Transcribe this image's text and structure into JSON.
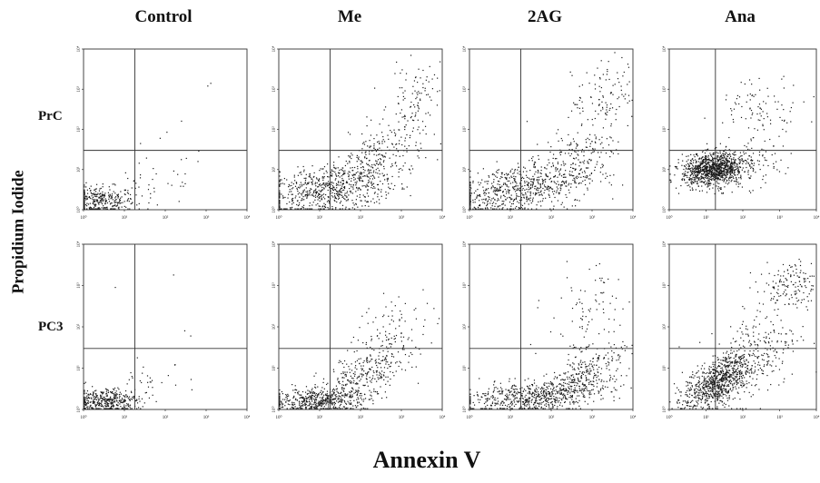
{
  "figure": {
    "x_title": "Annexin V",
    "y_title": "Propidium Iodide",
    "columns": [
      "Control",
      "Me",
      "2AG",
      "Ana"
    ],
    "rows": [
      "PrC",
      "PC3"
    ]
  },
  "chart_data": {
    "type": "scatter",
    "xlabel": "Annexin V",
    "ylabel": "Propidium Iodide",
    "x_scale": "log",
    "y_scale": "log",
    "xlim": [
      1,
      10000
    ],
    "ylim": [
      1,
      10000
    ],
    "x_ticks": [
      "10⁰",
      "10¹",
      "10²",
      "10³",
      "10⁴"
    ],
    "y_ticks": [
      "10⁰",
      "10¹",
      "10²",
      "10³",
      "10⁴"
    ],
    "point_color": "#1a1a1a",
    "panels": [
      {
        "row": "PrC",
        "col": "Control",
        "gate_x": 18,
        "gate_y": 30,
        "clusters": [
          {
            "n": 360,
            "x_log": [
              0.35,
              0.45
            ],
            "y_log": [
              0.22,
              0.18
            ],
            "rho": 0
          },
          {
            "n": 40,
            "x_log": [
              1.7,
              0.7
            ],
            "y_log": [
              0.6,
              0.4
            ],
            "rho": 0.5
          }
        ],
        "points": [
          [
            1100,
            1200
          ],
          [
            1300,
            1400
          ],
          [
            110,
            85
          ],
          [
            250,
            160
          ],
          [
            75,
            60
          ]
        ]
      },
      {
        "row": "PrC",
        "col": "Me",
        "gate_x": 18,
        "gate_y": 30,
        "clusters": [
          {
            "n": 680,
            "x_log": [
              1.2,
              0.85
            ],
            "y_log": [
              0.5,
              0.35
            ],
            "rho": 0.45
          },
          {
            "n": 260,
            "x_log": [
              2.4,
              0.6
            ],
            "y_log": [
              1.25,
              0.55
            ],
            "rho": 0.6
          },
          {
            "n": 90,
            "x_log": [
              3.4,
              0.35
            ],
            "y_log": [
              2.9,
              0.4
            ],
            "rho": 0.3
          }
        ],
        "points": []
      },
      {
        "row": "PrC",
        "col": "2AG",
        "gate_x": 18,
        "gate_y": 30,
        "clusters": [
          {
            "n": 650,
            "x_log": [
              1.1,
              0.85
            ],
            "y_log": [
              0.5,
              0.35
            ],
            "rho": 0.45
          },
          {
            "n": 220,
            "x_log": [
              2.5,
              0.55
            ],
            "y_log": [
              1.15,
              0.5
            ],
            "rho": 0.5
          },
          {
            "n": 110,
            "x_log": [
              3.3,
              0.4
            ],
            "y_log": [
              2.8,
              0.45
            ],
            "rho": 0.3
          }
        ],
        "points": []
      },
      {
        "row": "PrC",
        "col": "Ana",
        "gate_x": 18,
        "gate_y": 30,
        "clusters": [
          {
            "n": 1050,
            "x_log": [
              1.2,
              0.42
            ],
            "y_log": [
              1.0,
              0.2
            ],
            "rho": 0.15
          },
          {
            "n": 150,
            "x_log": [
              1.9,
              0.55
            ],
            "y_log": [
              1.1,
              0.3
            ],
            "rho": 0.2
          },
          {
            "n": 90,
            "x_log": [
              2.5,
              0.6
            ],
            "y_log": [
              2.6,
              0.35
            ],
            "rho": 0.1
          }
        ],
        "points": []
      },
      {
        "row": "PC3",
        "col": "Control",
        "gate_x": 18,
        "gate_y": 30,
        "clusters": [
          {
            "n": 420,
            "x_log": [
              0.55,
              0.4
            ],
            "y_log": [
              0.2,
              0.15
            ],
            "rho": 0
          },
          {
            "n": 30,
            "x_log": [
              1.6,
              0.5
            ],
            "y_log": [
              0.55,
              0.3
            ],
            "rho": 0.4
          }
        ],
        "points": [
          [
            6,
            900
          ],
          [
            160,
            1800
          ],
          [
            300,
            80
          ],
          [
            420,
            60
          ]
        ]
      },
      {
        "row": "PC3",
        "col": "Me",
        "gate_x": 18,
        "gate_y": 30,
        "clusters": [
          {
            "n": 520,
            "x_log": [
              1.0,
              0.6
            ],
            "y_log": [
              0.22,
              0.15
            ],
            "rho": 0.2
          },
          {
            "n": 300,
            "x_log": [
              2.1,
              0.55
            ],
            "y_log": [
              0.8,
              0.4
            ],
            "rho": 0.55
          },
          {
            "n": 90,
            "x_log": [
              2.8,
              0.5
            ],
            "y_log": [
              1.9,
              0.5
            ],
            "rho": 0.4
          }
        ],
        "points": []
      },
      {
        "row": "PC3",
        "col": "2AG",
        "gate_x": 18,
        "gate_y": 30,
        "clusters": [
          {
            "n": 600,
            "x_log": [
              1.5,
              0.8
            ],
            "y_log": [
              0.3,
              0.2
            ],
            "rho": 0.35
          },
          {
            "n": 320,
            "x_log": [
              2.8,
              0.5
            ],
            "y_log": [
              0.8,
              0.35
            ],
            "rho": 0.5
          },
          {
            "n": 90,
            "x_log": [
              2.9,
              0.5
            ],
            "y_log": [
              2.3,
              0.6
            ],
            "rho": 0.3
          }
        ],
        "points": []
      },
      {
        "row": "PC3",
        "col": "Ana",
        "gate_x": 18,
        "gate_y": 30,
        "clusters": [
          {
            "n": 780,
            "x_log": [
              1.3,
              0.45
            ],
            "y_log": [
              0.65,
              0.32
            ],
            "rho": 0.55
          },
          {
            "n": 280,
            "x_log": [
              2.3,
              0.6
            ],
            "y_log": [
              1.3,
              0.6
            ],
            "rho": 0.45
          },
          {
            "n": 160,
            "x_log": [
              3.3,
              0.45
            ],
            "y_log": [
              3.0,
              0.3
            ],
            "rho": 0.2
          }
        ],
        "points": []
      }
    ]
  }
}
